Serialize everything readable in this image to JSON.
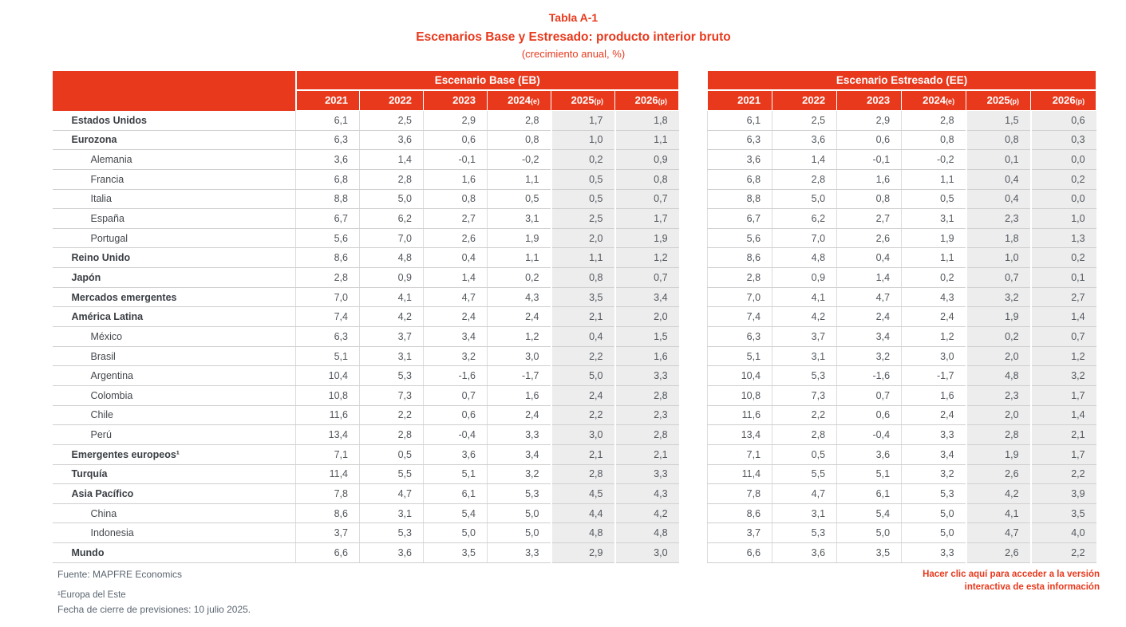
{
  "title": {
    "line1": "Tabla A-1",
    "line2": "Escenarios Base y Estresado: producto interior bruto",
    "line3": "(crecimiento anual, %)"
  },
  "colors": {
    "accent_red": "#E8391D",
    "shaded_column": "#EDEDEE",
    "header_text": "#FFFFFF",
    "body_text": "#52575C",
    "footer_text": "#5B6570"
  },
  "footer": {
    "source": "Fuente: MAPFRE Economics",
    "note1": "¹Europa del Este",
    "note2": "Fecha de cierre de previsiones: 10 julio 2025."
  },
  "link": {
    "line1": "Hacer clic aquí para acceder a la versión",
    "line2": "interactiva de esta información"
  },
  "chart_data": {
    "type": "table",
    "title": "Tabla A-1 — Escenarios Base y Estresado: producto interior bruto (crecimiento anual, %)",
    "scenario_labels": [
      "Escenario Base (EB)",
      "Escenario Estresado (EE)"
    ],
    "columns": [
      {
        "label": "2021",
        "suffix": ""
      },
      {
        "label": "2022",
        "suffix": ""
      },
      {
        "label": "2023",
        "suffix": ""
      },
      {
        "label": "2024",
        "suffix": "(e)"
      },
      {
        "label": "2025",
        "suffix": "(p)"
      },
      {
        "label": "2026",
        "suffix": "(p)"
      }
    ],
    "rows": [
      {
        "label": "Estados Unidos",
        "bold": true,
        "indent": false,
        "eb": [
          6.1,
          2.5,
          2.9,
          2.8,
          1.7,
          1.8
        ],
        "ee": [
          6.1,
          2.5,
          2.9,
          2.8,
          1.5,
          0.6
        ]
      },
      {
        "label": "Eurozona",
        "bold": true,
        "indent": false,
        "eb": [
          6.3,
          3.6,
          0.6,
          0.8,
          1.0,
          1.1
        ],
        "ee": [
          6.3,
          3.6,
          0.6,
          0.8,
          0.8,
          0.3
        ]
      },
      {
        "label": "Alemania",
        "bold": false,
        "indent": true,
        "eb": [
          3.6,
          1.4,
          -0.1,
          -0.2,
          0.2,
          0.9
        ],
        "ee": [
          3.6,
          1.4,
          -0.1,
          -0.2,
          0.1,
          0.0
        ]
      },
      {
        "label": "Francia",
        "bold": false,
        "indent": true,
        "eb": [
          6.8,
          2.8,
          1.6,
          1.1,
          0.5,
          0.8
        ],
        "ee": [
          6.8,
          2.8,
          1.6,
          1.1,
          0.4,
          0.2
        ]
      },
      {
        "label": "Italia",
        "bold": false,
        "indent": true,
        "eb": [
          8.8,
          5.0,
          0.8,
          0.5,
          0.5,
          0.7
        ],
        "ee": [
          8.8,
          5.0,
          0.8,
          0.5,
          0.4,
          0.0
        ]
      },
      {
        "label": "España",
        "bold": false,
        "indent": true,
        "eb": [
          6.7,
          6.2,
          2.7,
          3.1,
          2.5,
          1.7
        ],
        "ee": [
          6.7,
          6.2,
          2.7,
          3.1,
          2.3,
          1.0
        ]
      },
      {
        "label": "Portugal",
        "bold": false,
        "indent": true,
        "eb": [
          5.6,
          7.0,
          2.6,
          1.9,
          2.0,
          1.9
        ],
        "ee": [
          5.6,
          7.0,
          2.6,
          1.9,
          1.8,
          1.3
        ]
      },
      {
        "label": "Reino Unido",
        "bold": true,
        "indent": false,
        "eb": [
          8.6,
          4.8,
          0.4,
          1.1,
          1.1,
          1.2
        ],
        "ee": [
          8.6,
          4.8,
          0.4,
          1.1,
          1.0,
          0.2
        ]
      },
      {
        "label": "Japón",
        "bold": true,
        "indent": false,
        "eb": [
          2.8,
          0.9,
          1.4,
          0.2,
          0.8,
          0.7
        ],
        "ee": [
          2.8,
          0.9,
          1.4,
          0.2,
          0.7,
          0.1
        ]
      },
      {
        "label": "Mercados emergentes",
        "bold": true,
        "indent": false,
        "eb": [
          7.0,
          4.1,
          4.7,
          4.3,
          3.5,
          3.4
        ],
        "ee": [
          7.0,
          4.1,
          4.7,
          4.3,
          3.2,
          2.7
        ]
      },
      {
        "label": "América Latina",
        "bold": true,
        "indent": false,
        "eb": [
          7.4,
          4.2,
          2.4,
          2.4,
          2.1,
          2.0
        ],
        "ee": [
          7.4,
          4.2,
          2.4,
          2.4,
          1.9,
          1.4
        ]
      },
      {
        "label": "México",
        "bold": false,
        "indent": true,
        "eb": [
          6.3,
          3.7,
          3.4,
          1.2,
          0.4,
          1.5
        ],
        "ee": [
          6.3,
          3.7,
          3.4,
          1.2,
          0.2,
          0.7
        ]
      },
      {
        "label": "Brasil",
        "bold": false,
        "indent": true,
        "eb": [
          5.1,
          3.1,
          3.2,
          3.0,
          2.2,
          1.6
        ],
        "ee": [
          5.1,
          3.1,
          3.2,
          3.0,
          2.0,
          1.2
        ]
      },
      {
        "label": "Argentina",
        "bold": false,
        "indent": true,
        "eb": [
          10.4,
          5.3,
          -1.6,
          -1.7,
          5.0,
          3.3
        ],
        "ee": [
          10.4,
          5.3,
          -1.6,
          -1.7,
          4.8,
          3.2
        ]
      },
      {
        "label": "Colombia",
        "bold": false,
        "indent": true,
        "eb": [
          10.8,
          7.3,
          0.7,
          1.6,
          2.4,
          2.8
        ],
        "ee": [
          10.8,
          7.3,
          0.7,
          1.6,
          2.3,
          1.7
        ]
      },
      {
        "label": "Chile",
        "bold": false,
        "indent": true,
        "eb": [
          11.6,
          2.2,
          0.6,
          2.4,
          2.2,
          2.3
        ],
        "ee": [
          11.6,
          2.2,
          0.6,
          2.4,
          2.0,
          1.4
        ]
      },
      {
        "label": "Perú",
        "bold": false,
        "indent": true,
        "eb": [
          13.4,
          2.8,
          -0.4,
          3.3,
          3.0,
          2.8
        ],
        "ee": [
          13.4,
          2.8,
          -0.4,
          3.3,
          2.8,
          2.1
        ]
      },
      {
        "label": "Emergentes europeos¹",
        "bold": true,
        "indent": false,
        "eb": [
          7.1,
          0.5,
          3.6,
          3.4,
          2.1,
          2.1
        ],
        "ee": [
          7.1,
          0.5,
          3.6,
          3.4,
          1.9,
          1.7
        ]
      },
      {
        "label": "Turquía",
        "bold": true,
        "indent": false,
        "eb": [
          11.4,
          5.5,
          5.1,
          3.2,
          2.8,
          3.3
        ],
        "ee": [
          11.4,
          5.5,
          5.1,
          3.2,
          2.6,
          2.2
        ]
      },
      {
        "label": "Asia Pacífico",
        "bold": true,
        "indent": false,
        "eb": [
          7.8,
          4.7,
          6.1,
          5.3,
          4.5,
          4.3
        ],
        "ee": [
          7.8,
          4.7,
          6.1,
          5.3,
          4.2,
          3.9
        ]
      },
      {
        "label": "China",
        "bold": false,
        "indent": true,
        "eb": [
          8.6,
          3.1,
          5.4,
          5.0,
          4.4,
          4.2
        ],
        "ee": [
          8.6,
          3.1,
          5.4,
          5.0,
          4.1,
          3.5
        ]
      },
      {
        "label": "Indonesia",
        "bold": false,
        "indent": true,
        "eb": [
          3.7,
          5.3,
          5.0,
          5.0,
          4.8,
          4.8
        ],
        "ee": [
          3.7,
          5.3,
          5.0,
          5.0,
          4.7,
          4.0
        ]
      },
      {
        "label": "Mundo",
        "bold": true,
        "indent": false,
        "eb": [
          6.6,
          3.6,
          3.5,
          3.3,
          2.9,
          3.0
        ],
        "ee": [
          6.6,
          3.6,
          3.5,
          3.3,
          2.6,
          2.2
        ]
      }
    ]
  }
}
